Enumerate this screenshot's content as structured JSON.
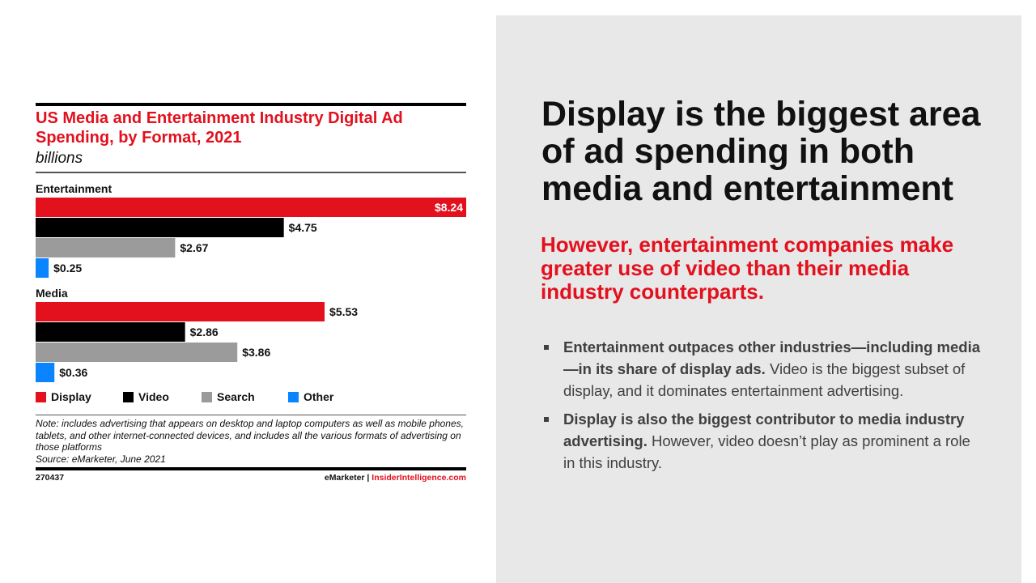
{
  "slide": {
    "headline": "Display is the biggest area of ad spending in both media and entertainment",
    "subheadline": "However, entertainment companies make greater use of video than their media industry counterparts.",
    "bullets": [
      {
        "bold": "Entertainment outpaces other industries—including media—in its share of display ads.",
        "text": " Video is the biggest subset of display, and it dominates entertainment advertising."
      },
      {
        "bold": "Display is also the biggest contributor to media industry advertising.",
        "text": " However, video doesn’t play as prominent a role in this industry."
      }
    ],
    "panel_color": "#e8e8e8",
    "accent_color": "#e3101d"
  },
  "chart_meta": {
    "note": "Note: includes advertising that appears on desktop and laptop computers as well as mobile phones, tablets, and other internet-connected devices, and includes all the various formats of advertising on those platforms",
    "source": "Source: eMarketer, June 2021",
    "chart_id": "270437",
    "brand_left": "eMarketer",
    "brand_sep": " | ",
    "brand_right": "InsiderIntelligence.com"
  },
  "chart_data": {
    "type": "bar",
    "orientation": "horizontal",
    "title": "US Media and Entertainment Industry Digital Ad Spending, by Format, 2021",
    "subtitle": "billions",
    "unit_prefix": "$",
    "groups": [
      "Entertainment",
      "Media"
    ],
    "series": [
      {
        "name": "Display",
        "color": "#e3101d",
        "values": [
          8.24,
          5.53
        ],
        "labels": [
          "$8.24",
          "$5.53"
        ]
      },
      {
        "name": "Video",
        "color": "#000000",
        "values": [
          4.75,
          2.86
        ],
        "labels": [
          "$4.75",
          "$2.86"
        ]
      },
      {
        "name": "Search",
        "color": "#9b9b9b",
        "values": [
          2.67,
          3.86
        ],
        "labels": [
          "$2.67",
          "$3.86"
        ]
      },
      {
        "name": "Other",
        "color": "#0a84ff",
        "values": [
          0.25,
          0.36
        ],
        "labels": [
          "$0.25",
          "$0.36"
        ]
      }
    ],
    "xlim": [
      0,
      8.24
    ],
    "grid": false,
    "legend": "bottom"
  }
}
